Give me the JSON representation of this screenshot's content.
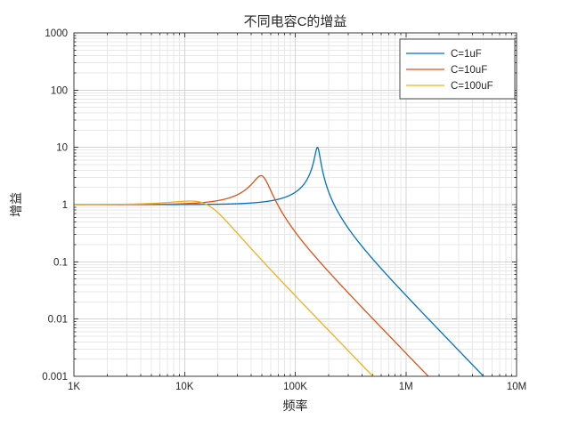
{
  "chart_data": {
    "type": "line",
    "title": "不同电容C的增益",
    "xlabel": "频率",
    "ylabel": "增益",
    "x_scale": "log",
    "y_scale": "log",
    "xlim": [
      1000,
      10000000
    ],
    "ylim": [
      0.001,
      1000
    ],
    "x_ticks": [
      {
        "value": 1000,
        "label": "1K"
      },
      {
        "value": 10000,
        "label": "10K"
      },
      {
        "value": 100000,
        "label": "100K"
      },
      {
        "value": 1000000,
        "label": "1M"
      },
      {
        "value": 10000000,
        "label": "10M"
      }
    ],
    "y_ticks": [
      {
        "value": 1000,
        "label": "1000"
      },
      {
        "value": 100,
        "label": "100"
      },
      {
        "value": 10,
        "label": "10"
      },
      {
        "value": 1,
        "label": "1"
      },
      {
        "value": 0.1,
        "label": "0.1"
      },
      {
        "value": 0.01,
        "label": "0.01"
      },
      {
        "value": 0.001,
        "label": "0.001"
      }
    ],
    "grid": {
      "major": true,
      "minor": true
    },
    "legend": {
      "position": "top-right"
    },
    "series": [
      {
        "name": "C=1uF",
        "color": "#0072BD",
        "model": {
          "type": "rlc_resonant_lowpass",
          "f0_hz": 159155,
          "Q": 10
        },
        "key_points": [
          {
            "f_hz": 1000,
            "gain": 1
          },
          {
            "f_hz": 100000,
            "gain": 1.6
          },
          {
            "f_hz": 159000,
            "gain": 10
          },
          {
            "f_hz": 1000000,
            "gain": 0.026
          },
          {
            "f_hz": 5000000,
            "gain": 0.001
          }
        ],
        "rolloff_db_per_decade": -40
      },
      {
        "name": "C=10uF",
        "color": "#D95319",
        "model": {
          "type": "rlc_resonant_lowpass",
          "f0_hz": 50329,
          "Q": 3.162
        },
        "key_points": [
          {
            "f_hz": 1000,
            "gain": 1
          },
          {
            "f_hz": 49000,
            "gain": 3.2
          },
          {
            "f_hz": 500000,
            "gain": 0.01
          },
          {
            "f_hz": 1590000,
            "gain": 0.001
          }
        ],
        "rolloff_db_per_decade": -40
      },
      {
        "name": "C=100uF",
        "color": "#EDB120",
        "model": {
          "type": "rlc_resonant_lowpass",
          "f0_hz": 15915,
          "Q": 1
        },
        "key_points": [
          {
            "f_hz": 1000,
            "gain": 1
          },
          {
            "f_hz": 11300,
            "gain": 1.15
          },
          {
            "f_hz": 160000,
            "gain": 0.01
          },
          {
            "f_hz": 500000,
            "gain": 0.001
          }
        ],
        "rolloff_db_per_decade": -40
      }
    ],
    "colors": {
      "background": "#ffffff",
      "axis": "#3b3b3b",
      "grid_major": "#d4d4d4",
      "grid_minor": "#e8e8e8",
      "text": "#262626",
      "legend_border": "#4a4a4a"
    }
  }
}
